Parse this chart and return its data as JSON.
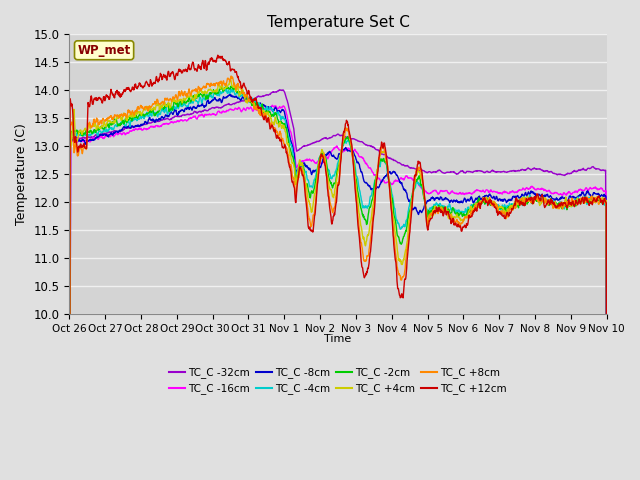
{
  "title": "Temperature Set C",
  "xlabel": "Time",
  "ylabel": "Temperature (C)",
  "ylim": [
    10.0,
    15.0
  ],
  "yticks": [
    10.0,
    10.5,
    11.0,
    11.5,
    12.0,
    12.5,
    13.0,
    13.5,
    14.0,
    14.5,
    15.0
  ],
  "xtick_labels": [
    "Oct 26",
    "Oct 27",
    "Oct 28",
    "Oct 29",
    "Oct 30",
    "Oct 31",
    "Nov 1",
    "Nov 2",
    "Nov 3",
    "Nov 4",
    "Nov 5",
    "Nov 6",
    "Nov 7",
    "Nov 8",
    "Nov 9",
    "Nov 10"
  ],
  "fig_bg_color": "#e0e0e0",
  "plot_bg_color": "#d4d4d4",
  "grid_color": "#f0f0f0",
  "wp_met_box_color": "#ffffcc",
  "wp_met_border_color": "#888800",
  "series": [
    {
      "label": "TC_C -32cm",
      "color": "#9900cc"
    },
    {
      "label": "TC_C -16cm",
      "color": "#ff00ff"
    },
    {
      "label": "TC_C -8cm",
      "color": "#0000cc"
    },
    {
      "label": "TC_C -4cm",
      "color": "#00cccc"
    },
    {
      "label": "TC_C -2cm",
      "color": "#00cc00"
    },
    {
      "label": "TC_C +4cm",
      "color": "#cccc00"
    },
    {
      "label": "TC_C +8cm",
      "color": "#ff8800"
    },
    {
      "label": "TC_C +12cm",
      "color": "#cc0000"
    }
  ]
}
